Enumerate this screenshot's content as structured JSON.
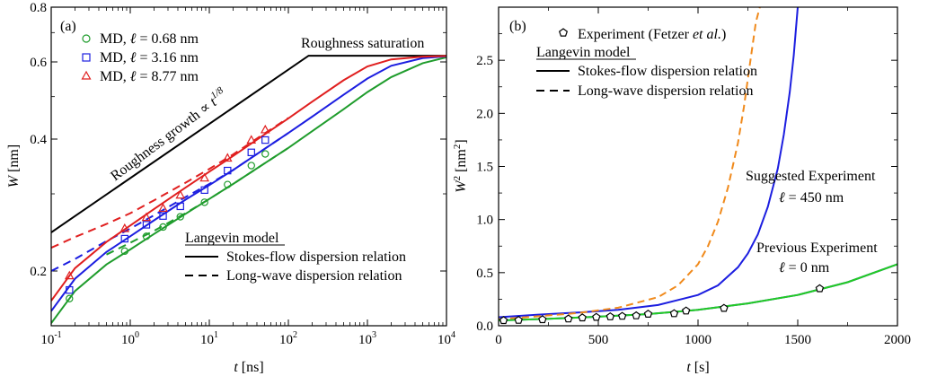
{
  "chart_data": [
    {
      "panel_label": "(a)",
      "type": "line",
      "xlabel": "t",
      "xunit": "[ns]",
      "ylabel": "W",
      "yunit": "[nm]",
      "x_scale": "log",
      "y_scale": "log",
      "xlim": [
        0.1,
        10000
      ],
      "ylim": [
        0.15,
        0.8
      ],
      "x_ticks": [
        {
          "value": 0.1,
          "base": "10",
          "exp": "-1"
        },
        {
          "value": 1,
          "base": "10",
          "exp": "0"
        },
        {
          "value": 10,
          "base": "10",
          "exp": "1"
        },
        {
          "value": 100,
          "base": "10",
          "exp": "2"
        },
        {
          "value": 1000,
          "base": "10",
          "exp": "3"
        },
        {
          "value": 10000,
          "base": "10",
          "exp": "4"
        }
      ],
      "y_ticks": [
        {
          "value": 0.2,
          "label": "0.2"
        },
        {
          "value": 0.4,
          "label": "0.4"
        },
        {
          "value": 0.6,
          "label": "0.6"
        },
        {
          "value": 0.8,
          "label": "0.8"
        }
      ],
      "colors": {
        "green": "#1f9c2c",
        "blue": "#1c1ee0",
        "red": "#e01f1f",
        "black": "#000000"
      },
      "md_legend": [
        {
          "prefix": "MD, ",
          "ell": "ℓ",
          "suffix": " = 0.68 nm",
          "color": "#1f9c2c",
          "marker": "circle"
        },
        {
          "prefix": "MD, ",
          "ell": "ℓ",
          "suffix": " = 3.16 nm",
          "color": "#1c1ee0",
          "marker": "square"
        },
        {
          "prefix": "MD, ",
          "ell": "ℓ",
          "suffix": " = 8.77 nm",
          "color": "#e01f1f",
          "marker": "triangle"
        }
      ],
      "model_legend": {
        "title": "Langevin model",
        "solid_label": "Stokes-flow dispersion relation",
        "dashed_label": "Long-wave dispersion relation"
      },
      "annotations": {
        "saturation": "Roughness saturation",
        "growth_prefix": "Roughness growth ∝ ",
        "growth_t": "t",
        "growth_exp": "1/8"
      },
      "guide_line": {
        "x": [
          0.1,
          180,
          10000
        ],
        "y": [
          0.245,
          0.62,
          0.62
        ]
      },
      "series": [
        {
          "name": "MD, ℓ = 0.68 nm",
          "color": "#1f9c2c",
          "marker": "circle",
          "points": {
            "x": [
              0.17,
              0.85,
              1.6,
              2.6,
              4.3,
              8.7,
              17,
              34,
              51
            ],
            "y": [
              0.173,
              0.222,
              0.24,
              0.252,
              0.266,
              0.287,
              0.315,
              0.348,
              0.37
            ]
          },
          "solid": {
            "x": [
              0.1,
              0.2,
              0.5,
              1,
              2,
              5,
              10,
              20,
              50,
              100,
              200,
              500,
              1000,
              2000,
              5000,
              10000
            ],
            "y": [
              0.152,
              0.18,
              0.207,
              0.224,
              0.243,
              0.27,
              0.292,
              0.316,
              0.352,
              0.382,
              0.417,
              0.468,
              0.512,
              0.554,
              0.596,
              0.615
            ]
          },
          "dashed": {
            "x": [
              0.5,
              1,
              2,
              5,
              10,
              20,
              50,
              100
            ],
            "y": [
              0.218,
              0.232,
              0.247,
              0.271,
              0.292,
              0.316,
              0.352,
              0.382
            ]
          }
        },
        {
          "name": "MD, ℓ = 3.16 nm",
          "color": "#1c1ee0",
          "marker": "square",
          "points": {
            "x": [
              0.17,
              0.85,
              1.6,
              2.6,
              4.3,
              8.7,
              17,
              34,
              51
            ],
            "y": [
              0.181,
              0.237,
              0.255,
              0.267,
              0.281,
              0.306,
              0.339,
              0.373,
              0.398
            ]
          },
          "solid": {
            "x": [
              0.1,
              0.2,
              0.5,
              1,
              2,
              5,
              10,
              20,
              50,
              100,
              200,
              500,
              1000,
              2000,
              5000,
              10000
            ],
            "y": [
              0.162,
              0.192,
              0.221,
              0.24,
              0.261,
              0.291,
              0.314,
              0.34,
              0.38,
              0.413,
              0.45,
              0.505,
              0.55,
              0.588,
              0.612,
              0.618
            ]
          },
          "dashed": {
            "x": [
              0.1,
              0.2,
              0.5,
              1,
              2,
              5,
              10,
              20,
              50,
              100
            ],
            "y": [
              0.2,
              0.213,
              0.234,
              0.25,
              0.268,
              0.295,
              0.316,
              0.34,
              0.38,
              0.413
            ]
          }
        },
        {
          "name": "MD, ℓ = 8.77 nm",
          "color": "#e01f1f",
          "marker": "triangle",
          "points": {
            "x": [
              0.17,
              0.85,
              1.6,
              2.6,
              4.3,
              8.7,
              17,
              34,
              51
            ],
            "y": [
              0.195,
              0.25,
              0.265,
              0.278,
              0.298,
              0.326,
              0.362,
              0.398,
              0.42
            ]
          },
          "solid": {
            "x": [
              0.1,
              0.2,
              0.5,
              1,
              2,
              5,
              10,
              20,
              50,
              100,
              200,
              500,
              1000,
              2000,
              5000,
              10000
            ],
            "y": [
              0.171,
              0.203,
              0.233,
              0.254,
              0.277,
              0.31,
              0.337,
              0.366,
              0.41,
              0.446,
              0.487,
              0.545,
              0.586,
              0.608,
              0.617,
              0.619
            ]
          },
          "dashed": {
            "x": [
              0.1,
              0.2,
              0.5,
              1,
              2,
              5,
              10,
              20,
              50,
              100
            ],
            "y": [
              0.226,
              0.239,
              0.256,
              0.271,
              0.29,
              0.318,
              0.342,
              0.369,
              0.412,
              0.447
            ]
          }
        }
      ]
    },
    {
      "panel_label": "(b)",
      "type": "line",
      "xlabel": "t",
      "xunit": "[s]",
      "ylabel": "W",
      "ylabel_sup": "2",
      "yunit_main": "[nm",
      "yunit_sup": "2",
      "yunit_close": "]",
      "x_scale": "linear",
      "y_scale": "linear",
      "xlim": [
        0,
        2000
      ],
      "ylim": [
        0,
        3.0
      ],
      "x_ticks": [
        {
          "value": 0,
          "label": "0"
        },
        {
          "value": 500,
          "label": "500"
        },
        {
          "value": 1000,
          "label": "1000"
        },
        {
          "value": 1500,
          "label": "1500"
        },
        {
          "value": 2000,
          "label": "2000"
        }
      ],
      "y_ticks": [
        {
          "value": 0.0,
          "label": "0.0"
        },
        {
          "value": 0.5,
          "label": "0.5"
        },
        {
          "value": 1.0,
          "label": "1.0"
        },
        {
          "value": 1.5,
          "label": "1.5"
        },
        {
          "value": 2.0,
          "label": "2.0"
        },
        {
          "value": 2.5,
          "label": "2.5"
        }
      ],
      "colors": {
        "green": "#22cc22",
        "blue": "#1c1ee0",
        "orange": "#f08a1c",
        "black": "#000000"
      },
      "legend": {
        "experiment_prefix": "Experiment (Fetzer ",
        "experiment_italic": "et al.",
        "experiment_suffix": ")",
        "model_title": "Langevin model",
        "solid_label": "Stokes-flow dispersion relation",
        "dashed_label": "Long-wave dispersion relation"
      },
      "annotations": {
        "suggested_line1": "Suggested Experiment",
        "suggested_ell": "ℓ",
        "suggested_value": " = 450 nm",
        "previous_line1": "Previous Experiment",
        "previous_ell": "ℓ",
        "previous_value": " = 0 nm"
      },
      "experiment_points": {
        "x": [
          25,
          100,
          220,
          350,
          420,
          490,
          560,
          620,
          690,
          750,
          880,
          940,
          1130,
          1610
        ],
        "y": [
          0.05,
          0.052,
          0.058,
          0.065,
          0.075,
          0.08,
          0.085,
          0.09,
          0.095,
          0.11,
          0.115,
          0.14,
          0.165,
          0.35
        ]
      },
      "curves": [
        {
          "name": "Suggested Experiment ℓ = 450 nm, Stokes-flow",
          "color": "#1c1ee0",
          "style": "solid",
          "x": [
            0,
            200,
            400,
            600,
            800,
            1000,
            1100,
            1200,
            1250,
            1300,
            1350,
            1400,
            1430,
            1460,
            1480,
            1500
          ],
          "y": [
            0.08,
            0.105,
            0.125,
            0.15,
            0.195,
            0.29,
            0.38,
            0.55,
            0.68,
            0.86,
            1.12,
            1.48,
            1.8,
            2.2,
            2.55,
            3.0
          ]
        },
        {
          "name": "Suggested Experiment ℓ = 450 nm, Long-wave",
          "color": "#f08a1c",
          "style": "dashed",
          "x": [
            0,
            200,
            400,
            600,
            800,
            900,
            1000,
            1050,
            1100,
            1150,
            1200,
            1230,
            1260,
            1290,
            1310
          ],
          "y": [
            0.06,
            0.09,
            0.12,
            0.17,
            0.27,
            0.38,
            0.58,
            0.75,
            0.98,
            1.3,
            1.72,
            2.06,
            2.46,
            2.86,
            3.0
          ]
        },
        {
          "name": "Previous Experiment ℓ = 0 nm, Stokes-flow",
          "color": "#1c1ee0",
          "style": "solid",
          "x": [
            0,
            250,
            500,
            750,
            1000,
            1250,
            1500,
            1750,
            2000
          ],
          "y": [
            0.05,
            0.065,
            0.085,
            0.11,
            0.15,
            0.21,
            0.29,
            0.41,
            0.58
          ]
        },
        {
          "name": "Previous Experiment ℓ = 0 nm, Long-wave",
          "color": "#22cc22",
          "style": "solid",
          "x": [
            0,
            250,
            500,
            750,
            1000,
            1250,
            1500,
            1750,
            2000
          ],
          "y": [
            0.05,
            0.065,
            0.085,
            0.11,
            0.15,
            0.21,
            0.29,
            0.41,
            0.58
          ]
        }
      ]
    }
  ]
}
